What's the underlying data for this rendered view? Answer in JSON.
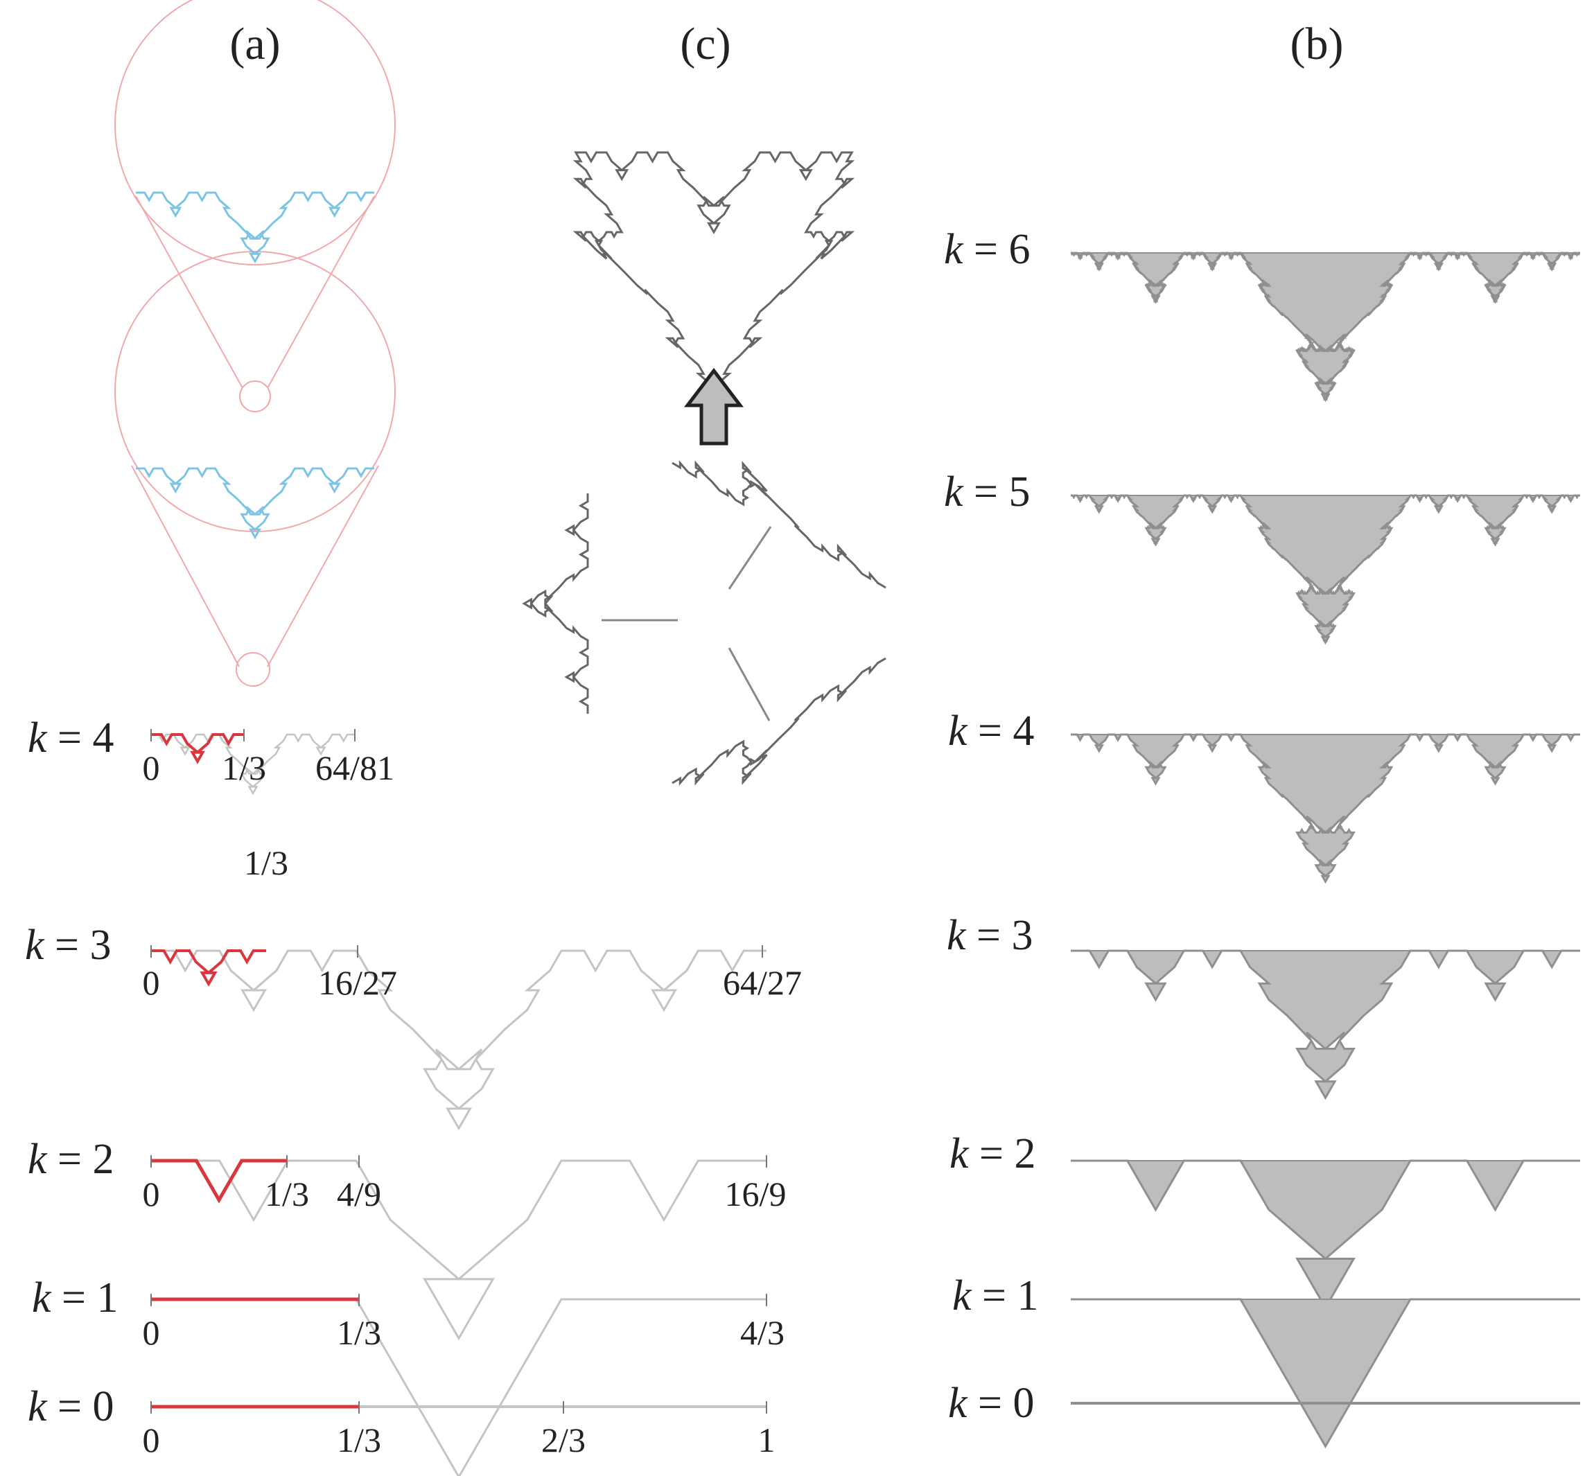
{
  "panels": {
    "a": {
      "title": "(a)"
    },
    "c": {
      "title": "(c)"
    },
    "b": {
      "title": "(b)"
    }
  },
  "colors": {
    "highlight": "#d9363e",
    "curve": "#c4c4c4",
    "zoom": "#f2a8aa",
    "detail": "#7cc4e4",
    "snowflake": "#666666",
    "fill": "#bdbdbd",
    "outline": "#8f8f8f"
  },
  "panel_a": {
    "rows": [
      {
        "k": "4",
        "ticks": [
          "0",
          "1/3",
          "64/81"
        ]
      },
      {
        "k": "3",
        "ticks": [
          "1/3",
          "0",
          "16/27",
          "64/27"
        ]
      },
      {
        "k": "2",
        "ticks": [
          "0",
          "1/3",
          "4/9",
          "16/9"
        ]
      },
      {
        "k": "1",
        "ticks": [
          "0",
          "1/3",
          "4/3"
        ]
      },
      {
        "k": "0",
        "ticks": [
          "0",
          "1/3",
          "2/3",
          "1"
        ]
      }
    ]
  },
  "panel_b": {
    "rows": [
      {
        "k": "6"
      },
      {
        "k": "5"
      },
      {
        "k": "4"
      },
      {
        "k": "3"
      },
      {
        "k": "2"
      },
      {
        "k": "1"
      },
      {
        "k": "0"
      }
    ]
  }
}
